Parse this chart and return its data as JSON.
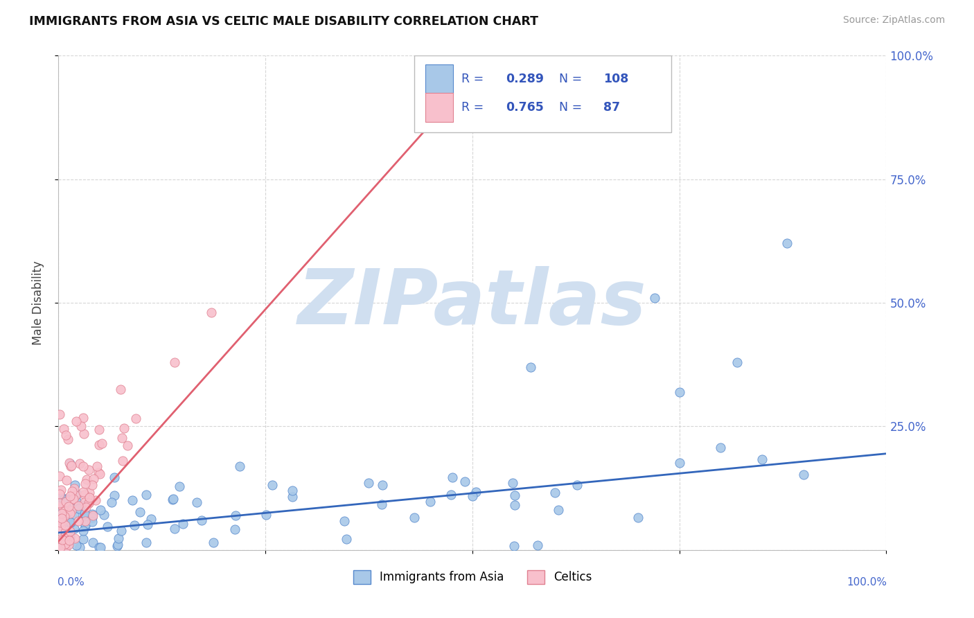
{
  "title": "IMMIGRANTS FROM ASIA VS CELTIC MALE DISABILITY CORRELATION CHART",
  "source": "Source: ZipAtlas.com",
  "ylabel": "Male Disability",
  "series1_name": "Immigrants from Asia",
  "series1_color": "#a8c8e8",
  "series1_edge_color": "#5588cc",
  "series1_line_color": "#3366bb",
  "series1_R": 0.289,
  "series1_N": 108,
  "series2_name": "Celtics",
  "series2_color": "#f8c0cc",
  "series2_edge_color": "#e08090",
  "series2_line_color": "#e06070",
  "series2_R": 0.765,
  "series2_N": 87,
  "background_color": "#ffffff",
  "grid_color": "#cccccc",
  "watermark": "ZIPatlas",
  "watermark_color": "#d0dff0",
  "legend_text_color": "#3355bb",
  "right_axis_color": "#4466cc",
  "right_yticks": [
    0.25,
    0.5,
    0.75,
    1.0
  ],
  "right_yticklabels": [
    "25.0%",
    "50.0%",
    "75.0%",
    "100.0%"
  ]
}
